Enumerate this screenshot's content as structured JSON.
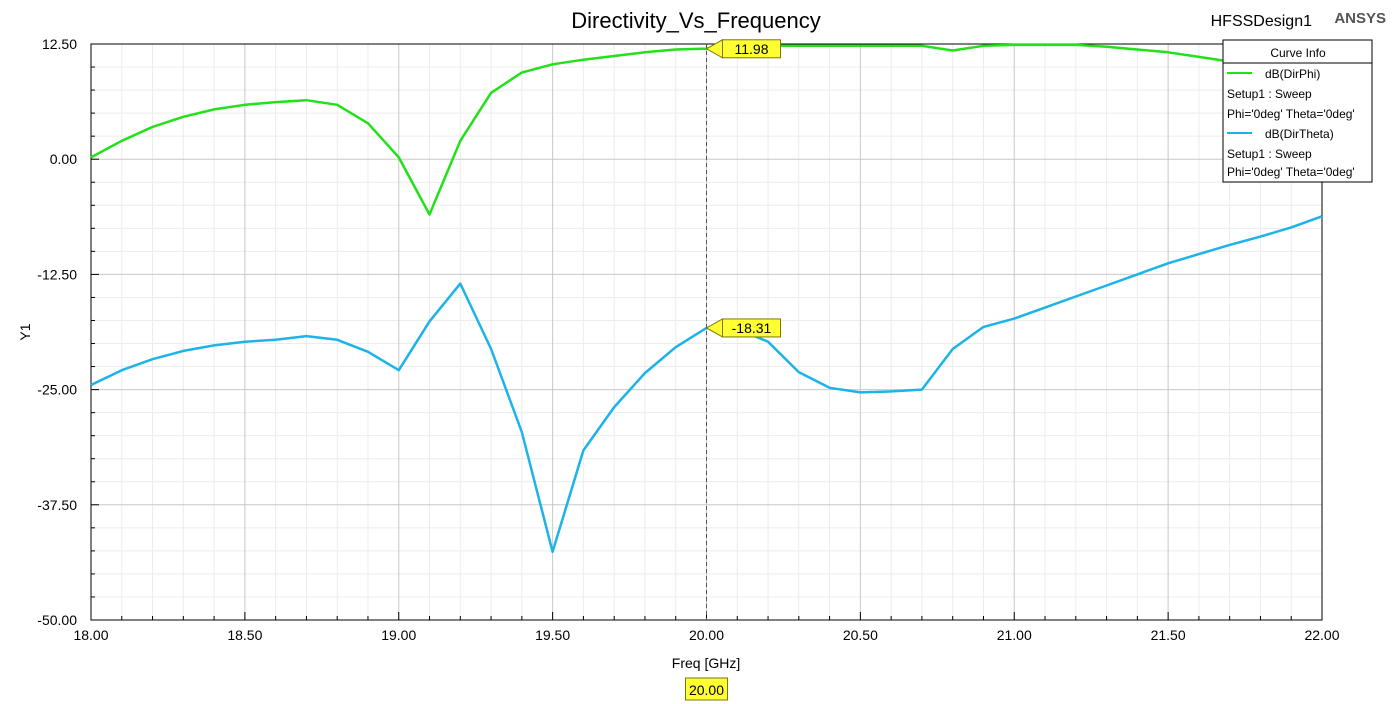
{
  "chart_data": {
    "type": "line",
    "title": "Directivity_Vs_Frequency",
    "design_name": "HFSSDesign1",
    "brand": "ANSYS",
    "xlabel": "Freq [GHz]",
    "ylabel": "Y1",
    "xlim": [
      18.0,
      22.0
    ],
    "ylim": [
      -50.0,
      12.5
    ],
    "x_ticks": [
      "18.00",
      "18.50",
      "19.00",
      "19.50",
      "20.00",
      "20.50",
      "21.00",
      "21.50",
      "22.00"
    ],
    "y_ticks": [
      "12.50",
      "0.00",
      "-12.50",
      "-25.00",
      "-37.50",
      "-50.00"
    ],
    "grid": true,
    "legend_position": "top-right",
    "legend_title": "Curve Info",
    "x": [
      18.0,
      18.1,
      18.2,
      18.3,
      18.4,
      18.5,
      18.6,
      18.7,
      18.8,
      18.9,
      19.0,
      19.1,
      19.2,
      19.3,
      19.4,
      19.5,
      19.6,
      19.7,
      19.8,
      19.9,
      20.0,
      20.1,
      20.2,
      20.3,
      20.4,
      20.5,
      20.6,
      20.7,
      20.8,
      20.9,
      21.0,
      21.1,
      21.2,
      21.3,
      21.4,
      21.5,
      21.6,
      21.7,
      21.8,
      21.9,
      22.0
    ],
    "series": [
      {
        "name": "dB(DirPhi)",
        "setup": "Setup1 : Sweep",
        "params": "Phi='0deg' Theta='0deg'",
        "color": "#22e01a",
        "values": [
          0.2,
          2.0,
          3.5,
          4.6,
          5.4,
          5.9,
          6.2,
          6.4,
          5.9,
          3.9,
          0.2,
          -6.0,
          2.0,
          7.2,
          9.4,
          10.3,
          10.8,
          11.2,
          11.6,
          11.9,
          12.0,
          12.2,
          12.3,
          12.3,
          12.3,
          12.3,
          12.3,
          12.3,
          11.8,
          12.3,
          12.4,
          12.4,
          12.4,
          12.2,
          11.9,
          11.6,
          11.1,
          10.6,
          10.1,
          9.9,
          9.9
        ]
      },
      {
        "name": "dB(DirTheta)",
        "setup": "Setup1 : Sweep",
        "params": "Phi='0deg' Theta='0deg'",
        "color": "#1cb3e8",
        "values": [
          -24.5,
          -22.9,
          -21.7,
          -20.8,
          -20.2,
          -19.8,
          -19.6,
          -19.2,
          -19.6,
          -20.9,
          -22.9,
          -17.6,
          -13.5,
          -20.6,
          -29.6,
          -42.6,
          -31.6,
          -26.9,
          -23.2,
          -20.4,
          -18.3,
          -18.4,
          -19.8,
          -23.1,
          -24.8,
          -25.3,
          -25.2,
          -25.0,
          -20.6,
          -18.2,
          -17.3,
          -16.1,
          -14.9,
          -13.7,
          -12.5,
          -11.3,
          -10.3,
          -9.3,
          -8.4,
          -7.4,
          -6.2
        ]
      }
    ],
    "marker": {
      "x_label": "20.00",
      "labels": [
        "11.98",
        "-18.31"
      ],
      "x": 20.0,
      "values": [
        11.98,
        -18.31
      ]
    }
  }
}
